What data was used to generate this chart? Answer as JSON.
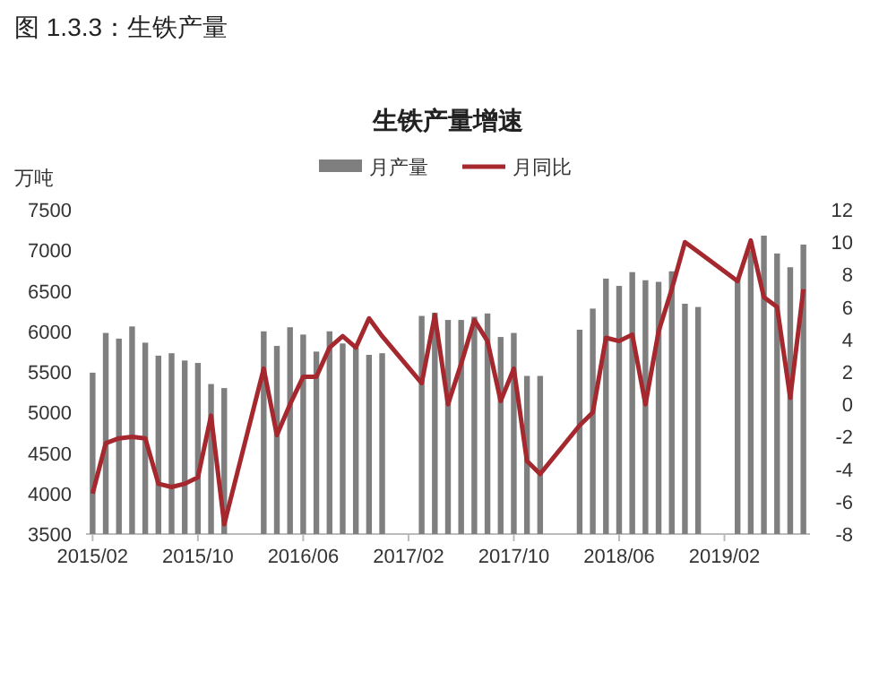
{
  "chart_data": {
    "type": "bar",
    "title": "图 1.3.3：生铁产量",
    "subtitle": "生铁产量增速",
    "ylabel": "万吨",
    "categories": [
      "2015/02",
      null,
      null,
      null,
      null,
      null,
      null,
      null,
      "2015/10",
      null,
      null,
      null,
      null,
      null,
      null,
      null,
      "2016/06",
      null,
      null,
      null,
      null,
      null,
      null,
      null,
      "2017/02",
      null,
      null,
      null,
      null,
      null,
      null,
      null,
      "2017/10",
      null,
      null,
      null,
      null,
      null,
      null,
      null,
      "2018/06",
      null,
      null,
      null,
      null,
      null,
      null,
      null,
      "2019/02",
      null,
      null,
      null,
      null,
      null,
      null
    ],
    "series": [
      {
        "name": "月产量",
        "color": "#7f7f7f",
        "values": [
          5490,
          5980,
          5910,
          6060,
          5860,
          5700,
          5730,
          5640,
          5610,
          5350,
          5300,
          null,
          null,
          6000,
          5820,
          6050,
          5960,
          5750,
          6000,
          5850,
          5800,
          5710,
          5730,
          null,
          null,
          6190,
          6230,
          6140,
          6140,
          6180,
          6220,
          5930,
          5980,
          5450,
          5450,
          null,
          null,
          6020,
          6280,
          6650,
          6560,
          6730,
          6630,
          6610,
          6740,
          6340,
          6300,
          null,
          null,
          6650,
          7000,
          7180,
          6960,
          6790,
          7070
        ]
      },
      {
        "name": "月同比",
        "type": "line",
        "axis": "y2",
        "color": "#a5282f",
        "values": [
          -5.5,
          -2.4,
          -2.1,
          -2.0,
          -2.1,
          -4.9,
          -5.1,
          -4.9,
          -4.5,
          -0.7,
          -7.4,
          null,
          null,
          2.2,
          -1.9,
          0.0,
          1.7,
          1.7,
          3.5,
          4.2,
          3.5,
          5.3,
          4.2,
          null,
          null,
          1.3,
          5.5,
          0.0,
          2.5,
          5.2,
          3.9,
          0.2,
          2.2,
          -3.5,
          -4.3,
          null,
          null,
          -1.3,
          -0.5,
          4.1,
          3.9,
          4.3,
          0.0,
          4.5,
          7.1,
          10.0,
          9.4,
          null,
          null,
          7.6,
          10.1,
          6.6,
          6.0,
          0.4,
          7.1
        ]
      }
    ],
    "ylim": [
      3500,
      7500
    ],
    "yticks": [
      3500,
      4000,
      4500,
      5000,
      5500,
      6000,
      6500,
      7000,
      7500
    ],
    "y2lim": [
      -8,
      12
    ],
    "y2ticks": [
      -8,
      -6,
      -4,
      -2,
      0,
      2,
      4,
      6,
      8,
      10,
      12
    ],
    "legend": "top",
    "grid": false
  }
}
